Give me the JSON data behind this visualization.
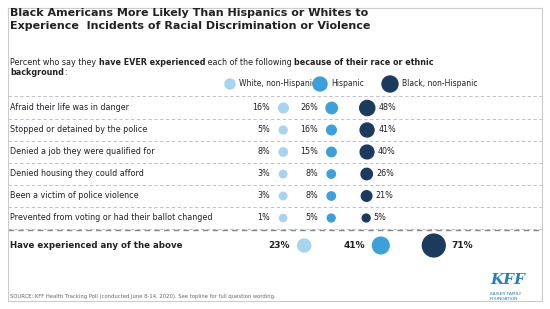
{
  "title": "Black Americans More Likely Than Hispanics or Whites to\nExperience  Incidents of Racial Discrimination or Violence",
  "legend_labels": [
    "White, non-Hispanic",
    "Hispanic",
    "Black, non-Hispanic"
  ],
  "legend_colors": [
    "#a8d4f0",
    "#3da0d8",
    "#1b3a5e"
  ],
  "categories": [
    "Afraid their life was in danger",
    "Stopped or detained by the police",
    "Denied a job they were qualified for",
    "Denied housing they could afford",
    "Been a victim of police violence",
    "Prevented from voting or had their ballot changed"
  ],
  "bold_category": "Have experienced any of the above",
  "white_values": [
    16,
    5,
    8,
    3,
    3,
    1
  ],
  "hispanic_values": [
    26,
    16,
    15,
    8,
    8,
    5
  ],
  "black_values": [
    48,
    41,
    40,
    26,
    21,
    5
  ],
  "bold_white": 23,
  "bold_hispanic": 41,
  "bold_black": 71,
  "white_color": "#a8d4f0",
  "hispanic_color": "#3da0d8",
  "black_color": "#1b3a5e",
  "source_text": "SOURCE: KFF Health Tracking Poll (conducted June 8-14, 2020). See topline for full question wording.",
  "bg_color": "#ffffff",
  "text_color": "#222222"
}
